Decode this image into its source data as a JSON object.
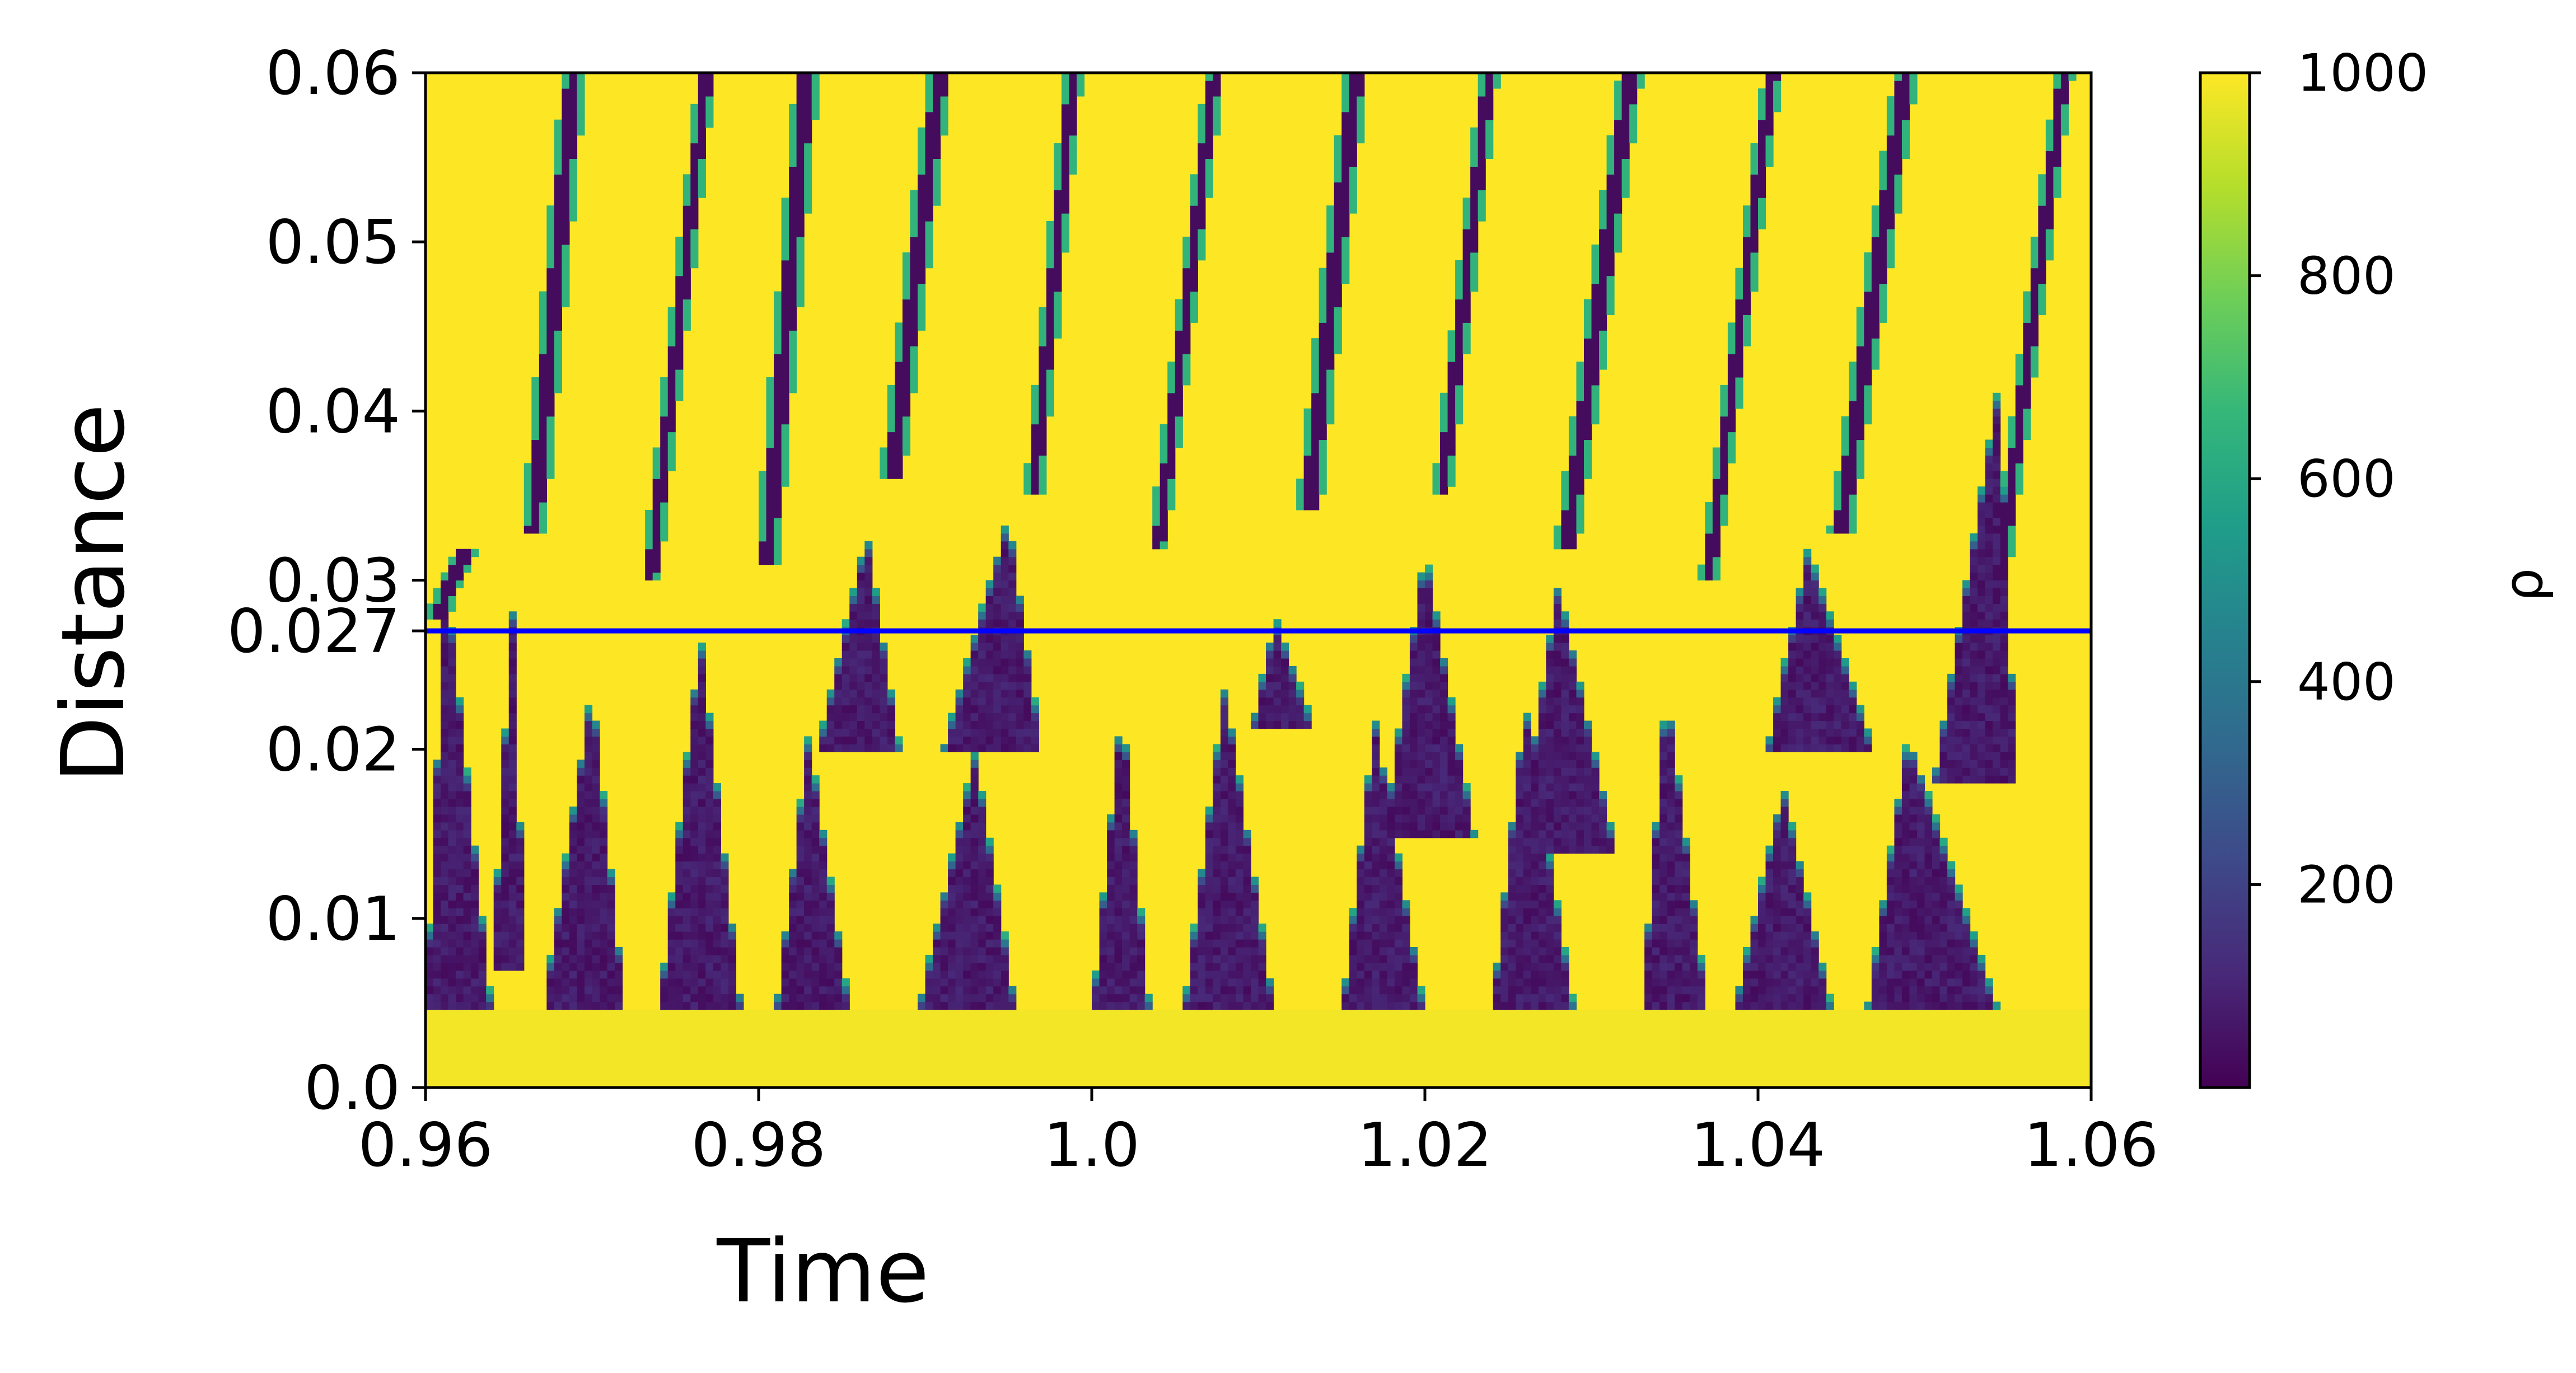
{
  "chart_data": {
    "type": "heatmap",
    "title": "",
    "xlabel": "Time",
    "ylabel": "Distance",
    "xlim": [
      0.96,
      1.06
    ],
    "ylim": [
      0.0,
      0.06
    ],
    "x_ticks": [
      {
        "value": 0.96,
        "label": "0.96"
      },
      {
        "value": 0.98,
        "label": "0.98"
      },
      {
        "value": 1.0,
        "label": "1.0"
      },
      {
        "value": 1.02,
        "label": "1.02"
      },
      {
        "value": 1.04,
        "label": "1.04"
      },
      {
        "value": 1.06,
        "label": "1.06"
      }
    ],
    "y_ticks": [
      {
        "value": 0.0,
        "label": "0.0"
      },
      {
        "value": 0.01,
        "label": "0.01"
      },
      {
        "value": 0.02,
        "label": "0.02"
      },
      {
        "value": 0.027,
        "label": "0.027"
      },
      {
        "value": 0.03,
        "label": "0.03"
      },
      {
        "value": 0.04,
        "label": "0.04"
      },
      {
        "value": 0.05,
        "label": "0.05"
      },
      {
        "value": 0.06,
        "label": "0.06"
      }
    ],
    "colorbar": {
      "label": "ρ",
      "min": 0,
      "max": 1000,
      "colormap": "viridis",
      "ticks": [
        {
          "value": 200,
          "label": "200"
        },
        {
          "value": 400,
          "label": "400"
        },
        {
          "value": 600,
          "label": "600"
        },
        {
          "value": 800,
          "label": "800"
        },
        {
          "value": 1000,
          "label": "1000"
        }
      ]
    },
    "colormap_stops": [
      "#440154",
      "#482878",
      "#3e4989",
      "#31688e",
      "#26828e",
      "#1f9e89",
      "#35b779",
      "#6ece58",
      "#b5de2b",
      "#fde725"
    ],
    "field": {
      "background_value": 1000,
      "base_layer_top": 0.0045,
      "base_layer_value": 985,
      "streaks": [
        {
          "t0": 0.9605,
          "y0": 0.0275,
          "t1": 0.9625,
          "y1": 0.032,
          "half_width": 0.0004
        },
        {
          "t0": 0.9665,
          "y0": 0.033,
          "t1": 0.969,
          "y1": 0.061,
          "half_width": 0.0004
        },
        {
          "t0": 0.9735,
          "y0": 0.03,
          "t1": 0.977,
          "y1": 0.061,
          "half_width": 0.0003
        },
        {
          "t0": 0.9805,
          "y0": 0.031,
          "t1": 0.983,
          "y1": 0.061,
          "half_width": 0.0004
        },
        {
          "t0": 0.988,
          "y0": 0.036,
          "t1": 0.991,
          "y1": 0.061,
          "half_width": 0.0004
        },
        {
          "t0": 0.9965,
          "y0": 0.035,
          "t1": 0.999,
          "y1": 0.061,
          "half_width": 0.0003
        },
        {
          "t0": 1.004,
          "y0": 0.032,
          "t1": 1.0075,
          "y1": 0.061,
          "half_width": 0.0003
        },
        {
          "t0": 1.013,
          "y0": 0.034,
          "t1": 1.016,
          "y1": 0.061,
          "half_width": 0.0004
        },
        {
          "t0": 1.021,
          "y0": 0.035,
          "t1": 1.024,
          "y1": 0.061,
          "half_width": 0.0003
        },
        {
          "t0": 1.0285,
          "y0": 0.032,
          "t1": 1.0325,
          "y1": 0.061,
          "half_width": 0.0004
        },
        {
          "t0": 1.037,
          "y0": 0.03,
          "t1": 1.041,
          "y1": 0.061,
          "half_width": 0.0003
        },
        {
          "t0": 1.045,
          "y0": 0.033,
          "t1": 1.049,
          "y1": 0.061,
          "half_width": 0.0004
        },
        {
          "t0": 1.0545,
          "y0": 0.03,
          "t1": 1.0585,
          "y1": 0.061,
          "half_width": 0.0003
        }
      ],
      "bubbles": [
        {
          "tmin": 0.96,
          "tmax": 0.964,
          "base": 0.0045,
          "apex_t": 0.9612,
          "apex_y": 0.031
        },
        {
          "tmin": 0.964,
          "tmax": 0.966,
          "base": 0.007,
          "apex_t": 0.9652,
          "apex_y": 0.029
        },
        {
          "tmin": 0.967,
          "tmax": 0.972,
          "base": 0.0045,
          "apex_t": 0.97,
          "apex_y": 0.024
        },
        {
          "tmin": 0.974,
          "tmax": 0.979,
          "base": 0.0045,
          "apex_t": 0.9765,
          "apex_y": 0.027
        },
        {
          "tmin": 0.981,
          "tmax": 0.9855,
          "base": 0.0045,
          "apex_t": 0.983,
          "apex_y": 0.021
        },
        {
          "tmin": 0.9835,
          "tmax": 0.9885,
          "base": 0.02,
          "apex_t": 0.9865,
          "apex_y": 0.033
        },
        {
          "tmin": 0.9895,
          "tmax": 0.9955,
          "base": 0.0045,
          "apex_t": 0.993,
          "apex_y": 0.02
        },
        {
          "tmin": 0.991,
          "tmax": 0.997,
          "base": 0.02,
          "apex_t": 0.995,
          "apex_y": 0.034
        },
        {
          "tmin": 1.0,
          "tmax": 1.0035,
          "base": 0.0045,
          "apex_t": 1.0018,
          "apex_y": 0.023
        },
        {
          "tmin": 1.0055,
          "tmax": 1.011,
          "base": 0.0045,
          "apex_t": 1.008,
          "apex_y": 0.024
        },
        {
          "tmin": 1.0095,
          "tmax": 1.0135,
          "base": 0.021,
          "apex_t": 1.011,
          "apex_y": 0.028
        },
        {
          "tmin": 1.015,
          "tmax": 1.02,
          "base": 0.0045,
          "apex_t": 1.017,
          "apex_y": 0.022
        },
        {
          "tmin": 1.0175,
          "tmax": 1.023,
          "base": 0.015,
          "apex_t": 1.02,
          "apex_y": 0.032
        },
        {
          "tmin": 1.024,
          "tmax": 1.029,
          "base": 0.0045,
          "apex_t": 1.026,
          "apex_y": 0.023
        },
        {
          "tmin": 1.0255,
          "tmax": 1.0315,
          "base": 0.014,
          "apex_t": 1.028,
          "apex_y": 0.03
        },
        {
          "tmin": 1.033,
          "tmax": 1.037,
          "base": 0.0045,
          "apex_t": 1.0345,
          "apex_y": 0.024
        },
        {
          "tmin": 1.0385,
          "tmax": 1.0445,
          "base": 0.0045,
          "apex_t": 1.0415,
          "apex_y": 0.018
        },
        {
          "tmin": 1.0405,
          "tmax": 1.047,
          "base": 0.02,
          "apex_t": 1.043,
          "apex_y": 0.032
        },
        {
          "tmin": 1.0465,
          "tmax": 1.0545,
          "base": 0.0045,
          "apex_t": 1.049,
          "apex_y": 0.021
        },
        {
          "tmin": 1.0505,
          "tmax": 1.0555,
          "base": 0.018,
          "apex_t": 1.0545,
          "apex_y": 0.042
        }
      ]
    },
    "hline": {
      "y": 0.027,
      "color": "#0000ff"
    }
  }
}
